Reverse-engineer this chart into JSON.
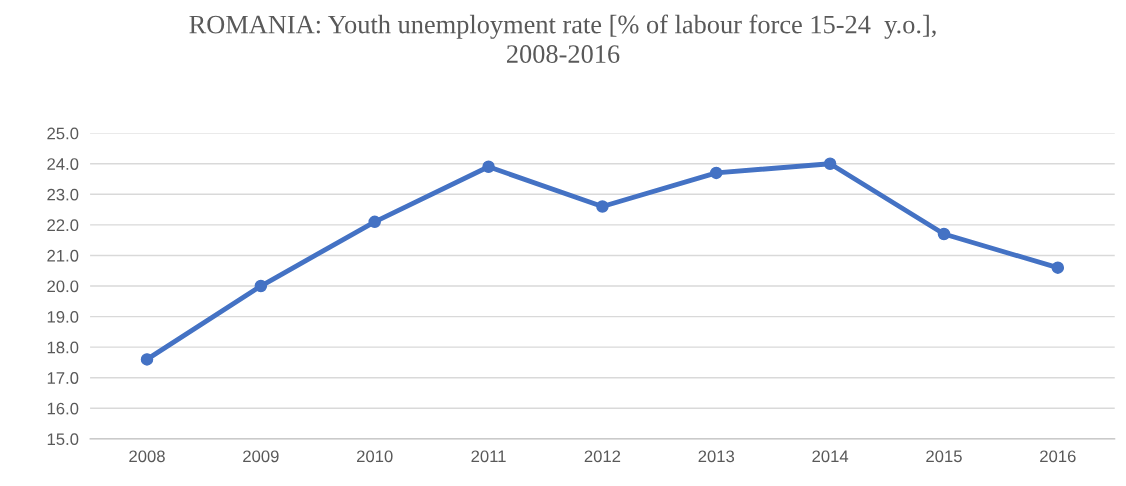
{
  "chart_data": {
    "type": "line",
    "title": "ROMANIA: Youth unemployment rate [% of labour force 15-24  y.o.],\n2008-2016",
    "categories": [
      "2008",
      "2009",
      "2010",
      "2011",
      "2012",
      "2013",
      "2014",
      "2015",
      "2016"
    ],
    "series": [
      {
        "color": "#4472c4",
        "values": [
          17.6,
          20.0,
          22.1,
          23.9,
          22.6,
          23.7,
          24.0,
          21.7,
          20.6
        ]
      }
    ],
    "ylim": [
      15,
      25
    ],
    "yticks": [
      {
        "value": 15,
        "label": "15.0"
      },
      {
        "value": 16,
        "label": "16.0"
      },
      {
        "value": 17,
        "label": "17.0"
      },
      {
        "value": 18,
        "label": "18.0"
      },
      {
        "value": 19,
        "label": "19.0"
      },
      {
        "value": 20,
        "label": "20.0"
      },
      {
        "value": 21,
        "label": "21.0"
      },
      {
        "value": 22,
        "label": "22.0"
      },
      {
        "value": 23,
        "label": "23.0"
      },
      {
        "value": 24,
        "label": "24.0"
      },
      {
        "value": 25,
        "label": "25.0"
      }
    ],
    "grid": "y",
    "marker": "circle",
    "line_style": "solid"
  }
}
